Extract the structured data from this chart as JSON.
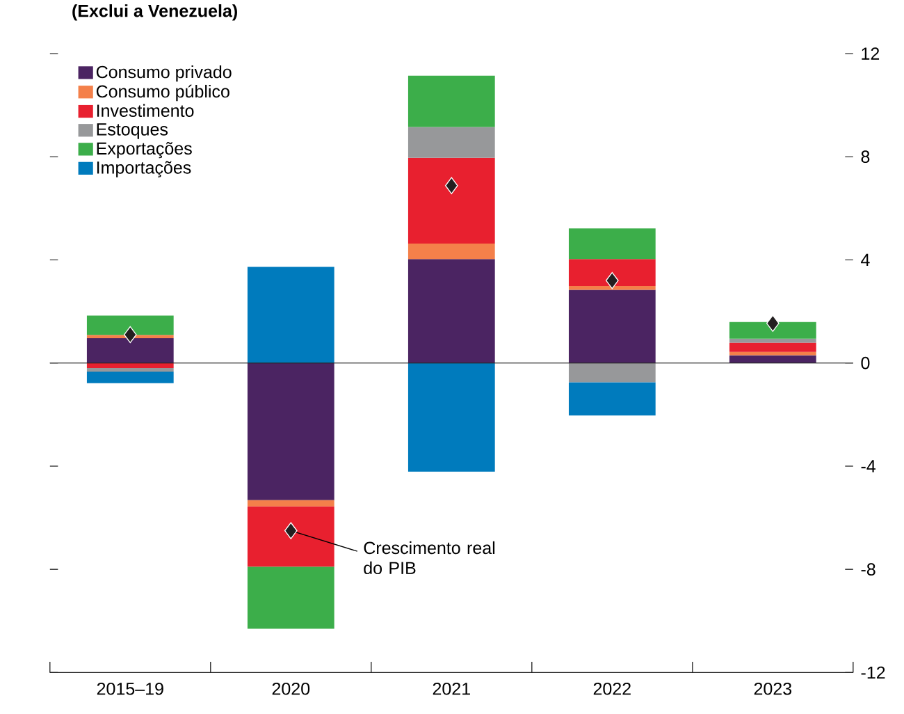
{
  "chart_data": {
    "type": "bar",
    "stacked": true,
    "subtitle": "(Exclui a Venezuela)",
    "categories": [
      "2015–19",
      "2020",
      "2021",
      "2022",
      "2023"
    ],
    "series": [
      {
        "name": "Consumo privado",
        "color": "#4b2462",
        "values": [
          0.96,
          -5.32,
          4.03,
          2.84,
          0.3
        ]
      },
      {
        "name": "Consumo público",
        "color": "#f4804a",
        "values": [
          0.13,
          -0.24,
          0.6,
          0.15,
          0.13
        ]
      },
      {
        "name": "Investimento",
        "color": "#e8202f",
        "values": [
          -0.2,
          -2.34,
          3.33,
          1.04,
          0.36
        ]
      },
      {
        "name": "Estoques",
        "color": "#97989a",
        "values": [
          -0.13,
          null,
          1.19,
          -0.75,
          0.15
        ]
      },
      {
        "name": "Exportações",
        "color": "#3cae4a",
        "values": [
          0.75,
          -2.4,
          1.99,
          1.19,
          0.65
        ]
      },
      {
        "name": "Importações",
        "color": "#007bbd",
        "values": [
          -0.45,
          3.73,
          -4.21,
          -1.28,
          null
        ]
      },
      {
        "name": "Crescimento real do PIB",
        "type": "scatter",
        "marker": "diamond",
        "color": "#231f20",
        "values": [
          1.1,
          -6.5,
          6.88,
          3.2,
          1.54
        ]
      }
    ],
    "ylim": [
      -12,
      12
    ],
    "yticks": [
      -12,
      -8,
      -4,
      0,
      4,
      8,
      12
    ],
    "legend": "top left",
    "grid": false,
    "ref_lines": [
      {
        "axis": "y",
        "value": 0
      }
    ]
  }
}
